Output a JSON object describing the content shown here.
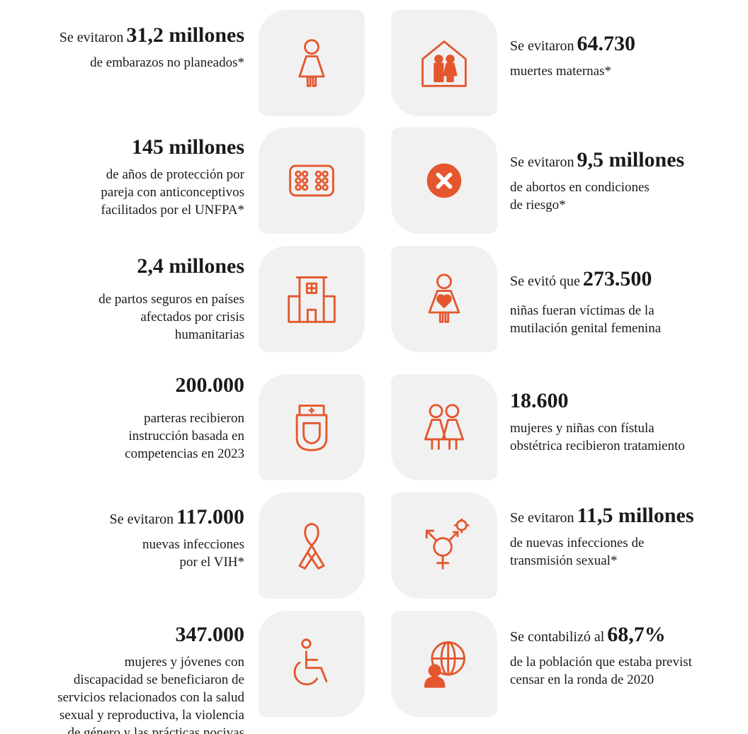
{
  "left": [
    {
      "prefix": "Se evitaron",
      "highlight": "31,2 millones",
      "lines": [
        "de embarazos no planeados*"
      ]
    },
    {
      "highlight": "145 millones",
      "lines": [
        "de años de protección por",
        "pareja con anticonceptivos",
        "facilitados por el UNFPA*"
      ]
    },
    {
      "highlight": "2,4 millones",
      "lines": [
        "de partos seguros en países",
        "afectados por crisis",
        "humanitarias"
      ]
    },
    {
      "highlight": "200.000",
      "lines": [
        "parteras recibieron",
        "instrucción basada en",
        "competencias en 2023"
      ]
    },
    {
      "prefix": "Se evitaron",
      "highlight": "117.000",
      "lines": [
        "nuevas infecciones",
        "por el VIH*"
      ]
    },
    {
      "highlight": "347.000",
      "lines": [
        "mujeres y jóvenes con",
        "discapacidad se beneficiaron de",
        "servicios relacionados con la salud",
        "sexual y reproductiva, la violencia",
        "de género y las prácticas nocivas"
      ]
    }
  ],
  "right": [
    {
      "prefix": "Se evitaron",
      "highlight": "64.730",
      "lines": [
        "muertes maternas*"
      ]
    },
    {
      "prefix": "Se evitaron",
      "highlight": "9,5 millones",
      "lines": [
        "de abortos en condiciones",
        "de riesgo*"
      ]
    },
    {
      "prefix": "Se evitó que",
      "highlight": "273.500",
      "lines": [
        "niñas fueran víctimas de la",
        "mutilación genital femenina"
      ]
    },
    {
      "highlight": "18.600",
      "lines": [
        "mujeres y niñas con fístula",
        "obstétrica recibieron tratamiento"
      ]
    },
    {
      "prefix": "Se evitaron",
      "highlight": "11,5 millones",
      "lines": [
        "de nuevas infecciones de",
        "transmisión sexual*"
      ]
    },
    {
      "prefix": "Se contabilizó al",
      "highlight": "68,7%",
      "lines": [
        "de la población que estaba previst",
        "censar en la ronda de 2020"
      ]
    }
  ]
}
